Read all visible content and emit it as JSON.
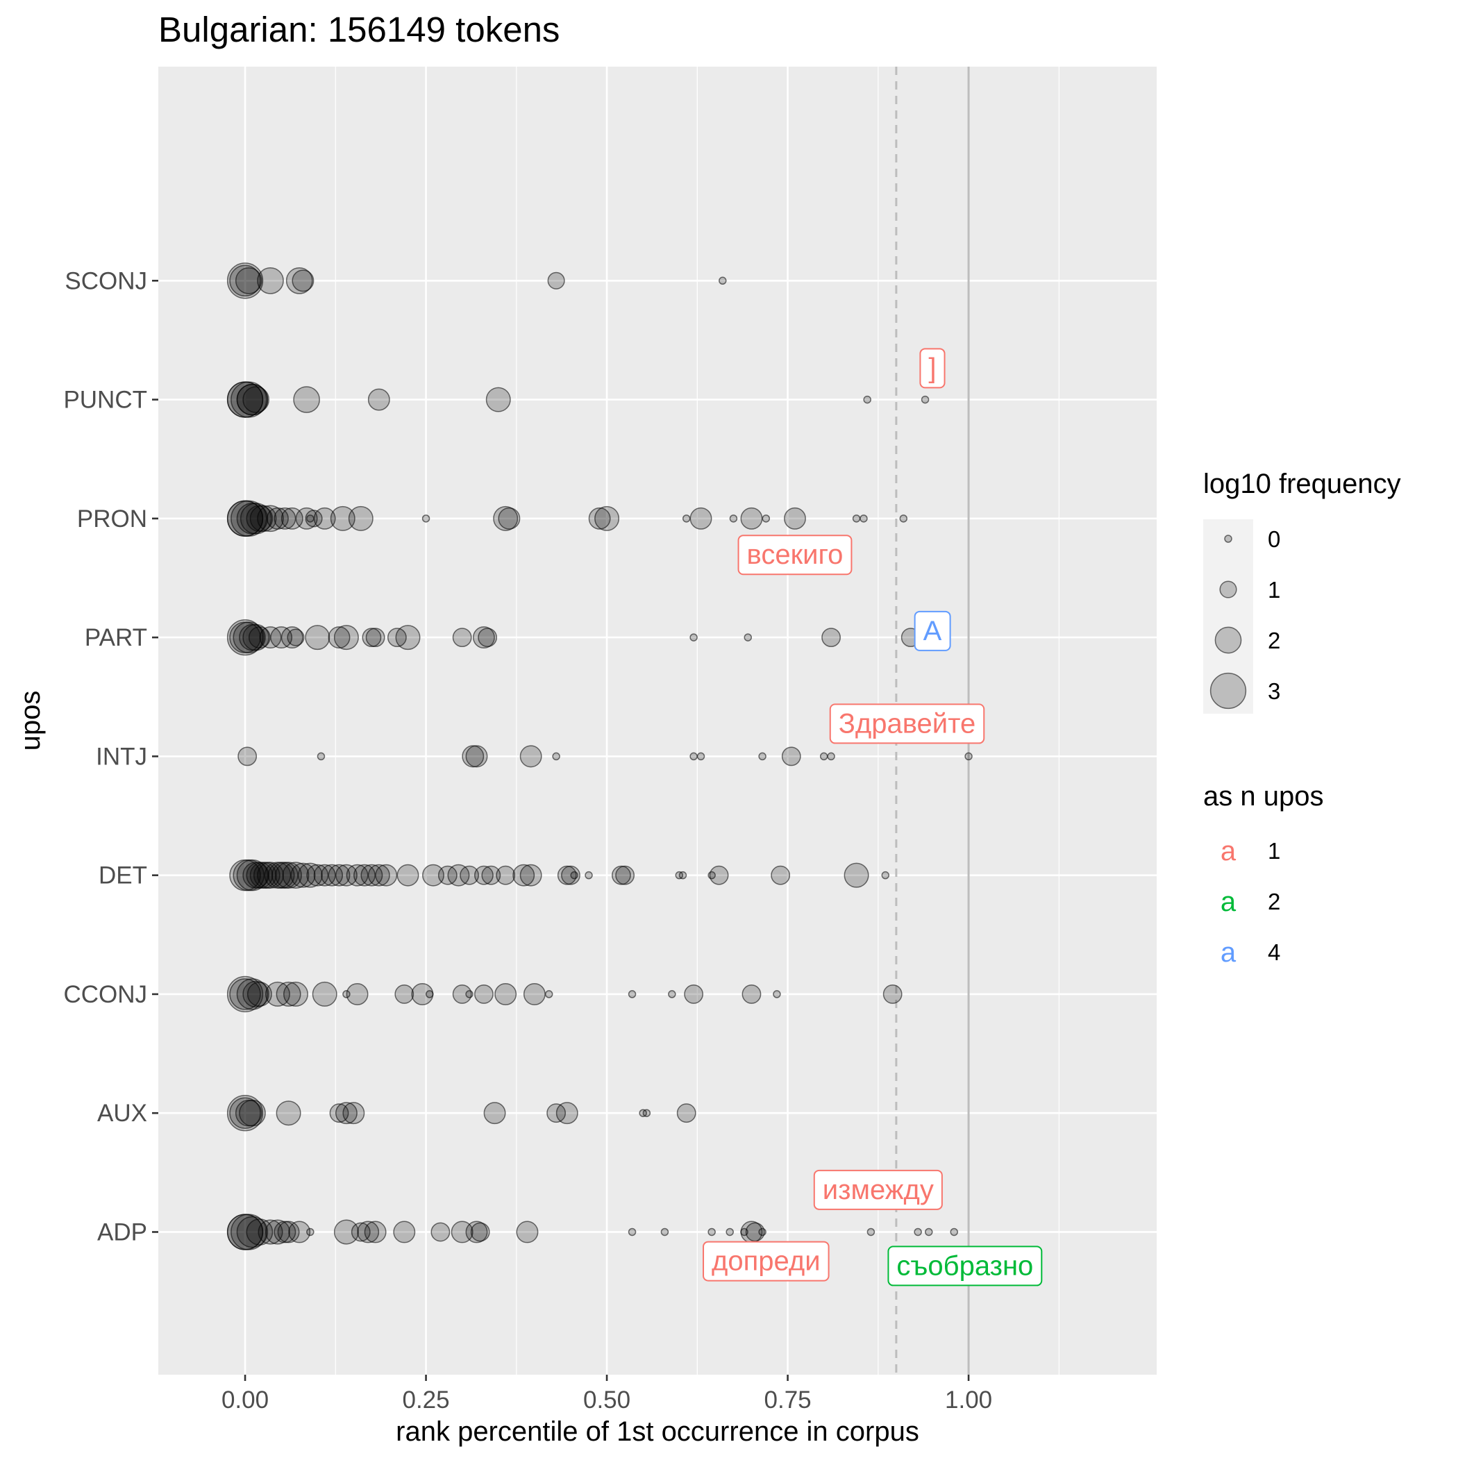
{
  "chart_data": {
    "type": "scatter",
    "title": "Bulgarian: 156149 tokens",
    "xlabel": "rank percentile of 1st occurrence in corpus",
    "ylabel": "upos",
    "xlim": [
      -0.12,
      1.26
    ],
    "x_ticks": [
      0,
      0.25,
      0.5,
      0.75,
      1.0
    ],
    "x_tick_labels": [
      "0.00",
      "0.25",
      "0.50",
      "0.75",
      "1.00"
    ],
    "categories": [
      "ADP",
      "AUX",
      "CCONJ",
      "DET",
      "INTJ",
      "PART",
      "PRON",
      "PUNCT",
      "SCONJ"
    ],
    "grid": true,
    "background": "#ebebeb",
    "point_color": "#000000",
    "point_alpha": 0.22,
    "reference_lines": [
      {
        "x": 0.9,
        "style": "dashed",
        "color": "#bdbdbd"
      },
      {
        "x": 1.0,
        "style": "solid",
        "color": "#bdbdbd"
      }
    ],
    "series": [
      {
        "name": "SCONJ",
        "points": [
          [
            0,
            3
          ],
          [
            0,
            2.5
          ],
          [
            0.005,
            2
          ],
          [
            0.035,
            2
          ],
          [
            0.075,
            2
          ],
          [
            0.08,
            1.5
          ],
          [
            0.43,
            1
          ],
          [
            0.66,
            0
          ]
        ]
      },
      {
        "name": "PUNCT",
        "points": [
          [
            0,
            3
          ],
          [
            0,
            3
          ],
          [
            0.005,
            3
          ],
          [
            0.01,
            2.5
          ],
          [
            0.01,
            2.5
          ],
          [
            0.015,
            2
          ],
          [
            0.085,
            2
          ],
          [
            0.185,
            1.5
          ],
          [
            0.35,
            1.8
          ],
          [
            0.86,
            0
          ],
          [
            0.94,
            0
          ]
        ]
      },
      {
        "name": "PRON",
        "points": [
          [
            0,
            3
          ],
          [
            0,
            3
          ],
          [
            0.005,
            3
          ],
          [
            0.01,
            2.5
          ],
          [
            0.015,
            2.5
          ],
          [
            0.02,
            2
          ],
          [
            0.025,
            2
          ],
          [
            0.035,
            2
          ],
          [
            0.045,
            1.5
          ],
          [
            0.055,
            1.5
          ],
          [
            0.065,
            1.5
          ],
          [
            0.085,
            1.5
          ],
          [
            0.09,
            0
          ],
          [
            0.095,
            1
          ],
          [
            0.11,
            1.5
          ],
          [
            0.135,
            1.8
          ],
          [
            0.16,
            1.8
          ],
          [
            0.25,
            0
          ],
          [
            0.36,
            1.8
          ],
          [
            0.365,
            1.5
          ],
          [
            0.49,
            1.5
          ],
          [
            0.5,
            1.8
          ],
          [
            0.61,
            0
          ],
          [
            0.63,
            1.5
          ],
          [
            0.675,
            0
          ],
          [
            0.7,
            1.5
          ],
          [
            0.72,
            0
          ],
          [
            0.76,
            1.5
          ],
          [
            0.845,
            0
          ],
          [
            0.855,
            0
          ],
          [
            0.91,
            0
          ]
        ]
      },
      {
        "name": "PART",
        "points": [
          [
            0,
            3
          ],
          [
            0,
            2.5
          ],
          [
            0.005,
            2.5
          ],
          [
            0.01,
            2
          ],
          [
            0.015,
            2
          ],
          [
            0.02,
            1.5
          ],
          [
            0.035,
            1.5
          ],
          [
            0.05,
            1.5
          ],
          [
            0.065,
            1.5
          ],
          [
            0.07,
            1
          ],
          [
            0.1,
            1.8
          ],
          [
            0.13,
            1.5
          ],
          [
            0.14,
            1.8
          ],
          [
            0.175,
            1.2
          ],
          [
            0.18,
            1.2
          ],
          [
            0.21,
            1.2
          ],
          [
            0.225,
            1.8
          ],
          [
            0.3,
            1.2
          ],
          [
            0.33,
            1.5
          ],
          [
            0.335,
            1.2
          ],
          [
            0.62,
            0
          ],
          [
            0.695,
            0
          ],
          [
            0.81,
            1.2
          ],
          [
            0.92,
            1.2
          ]
        ]
      },
      {
        "name": "INTJ",
        "points": [
          [
            0.003,
            1.2
          ],
          [
            0.105,
            0
          ],
          [
            0.315,
            1.5
          ],
          [
            0.32,
            1.5
          ],
          [
            0.395,
            1.5
          ],
          [
            0.43,
            0
          ],
          [
            0.62,
            0
          ],
          [
            0.63,
            0
          ],
          [
            0.715,
            0
          ],
          [
            0.755,
            1.2
          ],
          [
            0.8,
            0
          ],
          [
            0.81,
            0
          ],
          [
            1.0,
            0
          ]
        ]
      },
      {
        "name": "DET",
        "points": [
          [
            0,
            2.5
          ],
          [
            0.005,
            2.5
          ],
          [
            0.01,
            2.5
          ],
          [
            0.015,
            2
          ],
          [
            0.02,
            2
          ],
          [
            0.025,
            2
          ],
          [
            0.03,
            2
          ],
          [
            0.035,
            2
          ],
          [
            0.045,
            2
          ],
          [
            0.05,
            2
          ],
          [
            0.055,
            2
          ],
          [
            0.06,
            2
          ],
          [
            0.07,
            2
          ],
          [
            0.08,
            1.8
          ],
          [
            0.09,
            1.8
          ],
          [
            0.1,
            1.5
          ],
          [
            0.11,
            1.5
          ],
          [
            0.12,
            1.5
          ],
          [
            0.13,
            1.5
          ],
          [
            0.14,
            1.5
          ],
          [
            0.155,
            1.5
          ],
          [
            0.165,
            1.5
          ],
          [
            0.175,
            1.5
          ],
          [
            0.185,
            1.5
          ],
          [
            0.195,
            1.5
          ],
          [
            0.225,
            1.5
          ],
          [
            0.26,
            1.5
          ],
          [
            0.28,
            1.2
          ],
          [
            0.295,
            1.5
          ],
          [
            0.31,
            1.2
          ],
          [
            0.33,
            1.2
          ],
          [
            0.34,
            1.2
          ],
          [
            0.36,
            1.2
          ],
          [
            0.385,
            1.5
          ],
          [
            0.395,
            1.5
          ],
          [
            0.445,
            1.2
          ],
          [
            0.45,
            1.2
          ],
          [
            0.455,
            0
          ],
          [
            0.475,
            0
          ],
          [
            0.52,
            1.2
          ],
          [
            0.525,
            1.2
          ],
          [
            0.6,
            0
          ],
          [
            0.605,
            0
          ],
          [
            0.645,
            0
          ],
          [
            0.655,
            1.2
          ],
          [
            0.74,
            1.2
          ],
          [
            0.845,
            1.8
          ],
          [
            0.885,
            0
          ]
        ]
      },
      {
        "name": "CCONJ",
        "points": [
          [
            0,
            3
          ],
          [
            0,
            2.5
          ],
          [
            0.01,
            2.5
          ],
          [
            0.015,
            2
          ],
          [
            0.02,
            1.8
          ],
          [
            0.045,
            1.8
          ],
          [
            0.06,
            1.8
          ],
          [
            0.07,
            1.8
          ],
          [
            0.11,
            1.8
          ],
          [
            0.14,
            0
          ],
          [
            0.155,
            1.5
          ],
          [
            0.22,
            1.2
          ],
          [
            0.245,
            1.5
          ],
          [
            0.255,
            0
          ],
          [
            0.3,
            1.2
          ],
          [
            0.31,
            0
          ],
          [
            0.33,
            1.2
          ],
          [
            0.36,
            1.5
          ],
          [
            0.4,
            1.5
          ],
          [
            0.42,
            0
          ],
          [
            0.535,
            0
          ],
          [
            0.59,
            0
          ],
          [
            0.62,
            1.2
          ],
          [
            0.7,
            1.2
          ],
          [
            0.735,
            0
          ],
          [
            0.895,
            1.2
          ]
        ]
      },
      {
        "name": "AUX",
        "points": [
          [
            0,
            3
          ],
          [
            0,
            2.5
          ],
          [
            0.005,
            2
          ],
          [
            0.01,
            2
          ],
          [
            0.06,
            1.8
          ],
          [
            0.13,
            1.2
          ],
          [
            0.14,
            1.5
          ],
          [
            0.15,
            1.5
          ],
          [
            0.345,
            1.5
          ],
          [
            0.43,
            1.2
          ],
          [
            0.445,
            1.5
          ],
          [
            0.55,
            0
          ],
          [
            0.555,
            0
          ],
          [
            0.61,
            1.2
          ]
        ]
      },
      {
        "name": "ADP",
        "points": [
          [
            0,
            3
          ],
          [
            0,
            3
          ],
          [
            0.005,
            3
          ],
          [
            0.01,
            2.5
          ],
          [
            0.02,
            2
          ],
          [
            0.035,
            1.8
          ],
          [
            0.045,
            1.8
          ],
          [
            0.055,
            1.5
          ],
          [
            0.06,
            1.5
          ],
          [
            0.075,
            1.5
          ],
          [
            0.09,
            0
          ],
          [
            0.14,
            1.8
          ],
          [
            0.16,
            1.2
          ],
          [
            0.17,
            1.5
          ],
          [
            0.18,
            1.5
          ],
          [
            0.22,
            1.5
          ],
          [
            0.27,
            1.2
          ],
          [
            0.3,
            1.5
          ],
          [
            0.32,
            1.5
          ],
          [
            0.325,
            1.2
          ],
          [
            0.39,
            1.5
          ],
          [
            0.535,
            0
          ],
          [
            0.58,
            0
          ],
          [
            0.645,
            0
          ],
          [
            0.67,
            0
          ],
          [
            0.69,
            0
          ],
          [
            0.7,
            1.5
          ],
          [
            0.705,
            1.2
          ],
          [
            0.715,
            0
          ],
          [
            0.865,
            0
          ],
          [
            0.93,
            0
          ],
          [
            0.945,
            0
          ],
          [
            0.98,
            0
          ]
        ]
      }
    ],
    "annotations": [
      {
        "text": "]",
        "upos": "PUNCT",
        "x": 0.95,
        "y_offset": 0.27,
        "color": "#f8766d"
      },
      {
        "text": "всекиго",
        "upos": "PRON",
        "x": 0.76,
        "y_offset": -0.3,
        "color": "#f8766d"
      },
      {
        "text": "A",
        "upos": "PART",
        "x": 0.95,
        "y_offset": 0.06,
        "color": "#619cff"
      },
      {
        "text": "Здравейте",
        "upos": "INTJ",
        "x": 0.915,
        "y_offset": 0.28,
        "color": "#f8766d"
      },
      {
        "text": "измежду",
        "upos": "ADP",
        "x": 0.875,
        "y_offset": 0.36,
        "color": "#f8766d"
      },
      {
        "text": "допреди",
        "upos": "ADP",
        "x": 0.72,
        "y_offset": -0.24,
        "color": "#f8766d"
      },
      {
        "text": "съобразно",
        "upos": "ADP",
        "x": 0.995,
        "y_offset": -0.28,
        "color": "#00ba38"
      }
    ]
  },
  "legend": {
    "size_title": "log10 frequency",
    "size_items": [
      {
        "label": "0",
        "value": 0
      },
      {
        "label": "1",
        "value": 1
      },
      {
        "label": "2",
        "value": 2
      },
      {
        "label": "3",
        "value": 3
      }
    ],
    "color_title": "as n upos",
    "color_items": [
      {
        "key": "a",
        "label": "1",
        "color": "#f8766d"
      },
      {
        "key": "a",
        "label": "2",
        "color": "#00ba38"
      },
      {
        "key": "a",
        "label": "4",
        "color": "#619cff"
      }
    ]
  }
}
